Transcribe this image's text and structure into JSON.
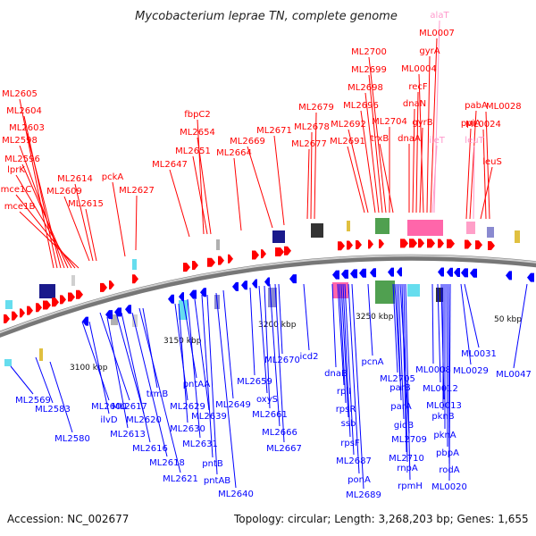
{
  "title": "Mycobacterium leprae TN, complete genome",
  "footer": {
    "accession": "Accession: NC_002677",
    "summary": "Topology: circular; Length: 3,268,203 bp; Genes: 1,655"
  },
  "colors": {
    "forward": "#ff0000",
    "reverse": "#0000ff",
    "rna": "#ff99cc",
    "backbone": "#888888"
  },
  "ticks": [
    "3100 kbp",
    "3150 kbp",
    "3200 kbp",
    "3250 kbp",
    "50 kbp"
  ],
  "forward_labels": [
    "ML2605",
    "ML2604",
    "ML2603",
    "ML2598",
    "ML2596",
    "lprK",
    "mce1C",
    "mce1B",
    "ML2614",
    "ML2609",
    "ML2615",
    "pckA",
    "ML2627",
    "fbpC2",
    "ML2654",
    "ML2651",
    "ML2647",
    "ML2669",
    "ML2664",
    "ML2671",
    "ML2679",
    "ML2678",
    "ML2677",
    "ML2700",
    "ML2699",
    "ML2698",
    "ML2696",
    "ML2692",
    "ML2691",
    "ML2704",
    "trxB",
    "dnaN",
    "recF",
    "dnaA",
    "gyrB",
    "ML0004",
    "gyrA",
    "ML0007",
    "pabA",
    "ppiA",
    "ML0028",
    "ML0024",
    "leuS"
  ],
  "rna_labels": [
    "alaT",
    "ileT",
    "leuT"
  ],
  "reverse_labels": [
    "ML2569",
    "ML2583",
    "ML2580",
    "ML2600",
    "ML2617",
    "trmB",
    "ilvD",
    "ML2620",
    "ML2613",
    "ML2616",
    "ML2618",
    "ML2621",
    "ML2629",
    "pntAA",
    "ML2630",
    "ML2631",
    "ML2639",
    "pntB",
    "pntAB",
    "ML2640",
    "ML2649",
    "ML2659",
    "oxyS",
    "ML2661",
    "ML2670",
    "ML2666",
    "ML2667",
    "icd2",
    "dnaB",
    "rplI",
    "rpsR",
    "ssb",
    "rpsF",
    "ML2687",
    "ponA",
    "ML2689",
    "pcnA",
    "ML2705",
    "parB",
    "parA",
    "gidB",
    "ML2709",
    "ML2710",
    "rnpA",
    "rpmH",
    "ML0008",
    "ML0012",
    "ML0013",
    "pknB",
    "pknA",
    "pbpA",
    "rodA",
    "ML0020",
    "ML0031",
    "ML0029",
    "ML0047"
  ]
}
